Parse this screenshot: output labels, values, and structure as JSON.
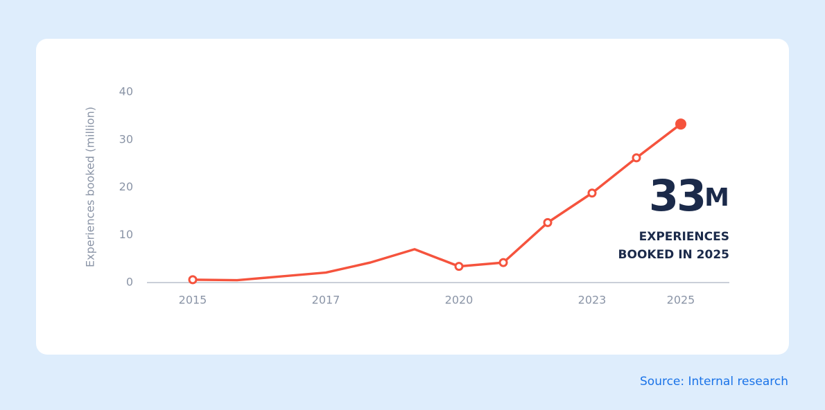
{
  "chart_data": {
    "type": "line",
    "y_label": "Experiences booked (million)",
    "categories": [
      "2015",
      null,
      null,
      "2017",
      null,
      null,
      "2020",
      null,
      null,
      "2023",
      null,
      "2025"
    ],
    "values": [
      0.6,
      0.5,
      1.3,
      2.1,
      4.2,
      7.0,
      3.4,
      4.2,
      12.6,
      18.8,
      26.2,
      33.3
    ],
    "color": "#f5533d",
    "marker_indices": [
      0,
      6,
      7,
      8,
      9,
      10
    ],
    "highlight_index": 11,
    "ylim": [
      0,
      40
    ],
    "yticks": [
      0,
      10,
      20,
      30,
      40
    ],
    "grid": false,
    "annotation": {
      "number": "33",
      "unit": "M",
      "line1": "EXPERIENCES",
      "line2": "BOOKED IN 2025"
    },
    "source": "Source: Internal research"
  }
}
